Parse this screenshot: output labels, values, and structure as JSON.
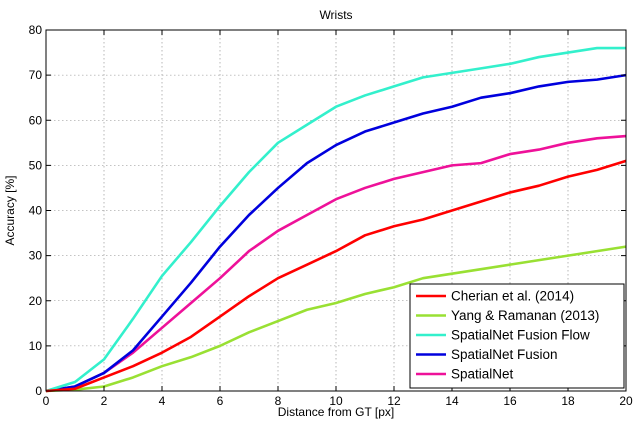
{
  "chart_data": {
    "type": "line",
    "title": "Wrists",
    "xlabel": "Distance from GT [px]",
    "ylabel": "Accuracy [%]",
    "xlim": [
      0,
      20
    ],
    "ylim": [
      0,
      80
    ],
    "xticks": [
      0,
      2,
      4,
      6,
      8,
      10,
      12,
      14,
      16,
      18,
      20
    ],
    "yticks": [
      0,
      10,
      20,
      30,
      40,
      50,
      60,
      70,
      80
    ],
    "grid": true,
    "legend_position": "bottom-right",
    "x": [
      0,
      1,
      2,
      3,
      4,
      5,
      6,
      7,
      8,
      9,
      10,
      11,
      12,
      13,
      14,
      15,
      16,
      17,
      18,
      19,
      20
    ],
    "series": [
      {
        "name": "Cherian et al. (2014)",
        "color": "#ff0000",
        "values": [
          0,
          0.5,
          3,
          5.5,
          8.5,
          12,
          16.5,
          21,
          25,
          28,
          31,
          34.5,
          36.5,
          38,
          40,
          42,
          44,
          45.5,
          47.5,
          49,
          51
        ]
      },
      {
        "name": "Yang & Ramanan (2013)",
        "color": "#99e033",
        "values": [
          0,
          0.3,
          1,
          3,
          5.5,
          7.5,
          10,
          13,
          15.5,
          18,
          19.5,
          21.5,
          23,
          25,
          26,
          27,
          28,
          29,
          30,
          31,
          32
        ]
      },
      {
        "name": "SpatialNet Fusion Flow",
        "color": "#33f0cc",
        "values": [
          0,
          2,
          7,
          16,
          25.5,
          33,
          41,
          48.5,
          55,
          59,
          63,
          65.5,
          67.5,
          69.5,
          70.5,
          71.5,
          72.5,
          74,
          75,
          76,
          76
        ]
      },
      {
        "name": "SpatialNet Fusion",
        "color": "#0000dd",
        "values": [
          0,
          1,
          4,
          9,
          16.5,
          24,
          32,
          39,
          45,
          50.5,
          54.5,
          57.5,
          59.5,
          61.5,
          63,
          65,
          66,
          67.5,
          68.5,
          69,
          70
        ]
      },
      {
        "name": "SpatialNet",
        "color": "#ee1199",
        "values": [
          0,
          1,
          4,
          8.5,
          14,
          19.5,
          25,
          31,
          35.5,
          39,
          42.5,
          45,
          47,
          48.5,
          50,
          50.5,
          52.5,
          53.5,
          55,
          56,
          56.5
        ]
      }
    ]
  }
}
